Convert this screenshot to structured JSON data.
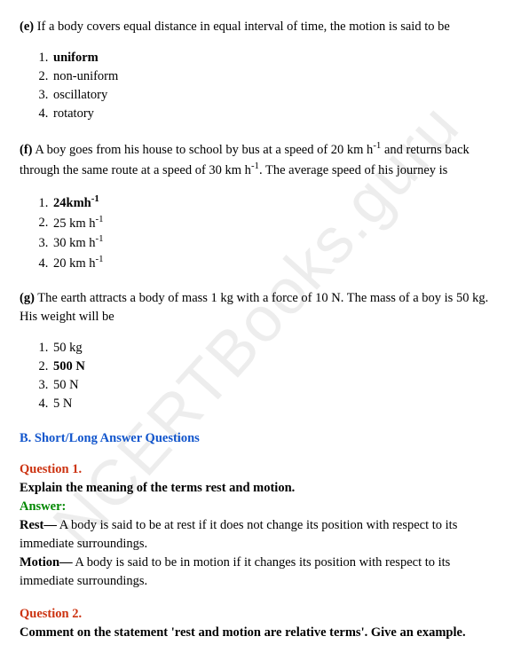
{
  "watermark": "NCERTBooks.guru",
  "questions": {
    "e": {
      "label": "(e)",
      "text": " If a body covers equal distance in equal interval of time, the motion is said to be",
      "options": [
        "uniform",
        "non-uniform",
        "oscillatory",
        "rotatory"
      ],
      "answer_index": 0
    },
    "f": {
      "label": "(f)",
      "text_pre": " A boy goes from his house to school by bus at a speed of 20 km h",
      "text_mid1": " and returns back through the same route at a speed of 30 km h",
      "text_mid2": ". The average speed of his journey is",
      "sup": "-1",
      "options": [
        "24kmh",
        "25 km h",
        "30 km h",
        "20 km h"
      ],
      "opt_sup": "-1",
      "answer_index": 0
    },
    "g": {
      "label": "(g)",
      "text": " The earth attracts a body of mass 1 kg with a force of 10 N. The mass of a boy is 50 kg. His weight will be",
      "options": [
        "50 kg",
        "500 N",
        "50 N",
        "5 N"
      ],
      "answer_index": 1
    }
  },
  "section_b_title": "B. Short/Long Answer Questions",
  "qa": {
    "q1": {
      "num": "Question 1.",
      "text": "Explain the meaning of the terms rest and motion.",
      "answer_label": "Answer:",
      "rest_label": "Rest—",
      "rest_text": " A body is said to be at rest if it does not change its position with respect to its immediate surroundings.",
      "motion_label": "Motion—",
      "motion_text": " A body is said to be in motion if it changes its position with respect to its immediate surroundings."
    },
    "q2": {
      "num": "Question 2.",
      "text": "Comment on the statement 'rest and motion are relative terms'. Give an example."
    }
  }
}
